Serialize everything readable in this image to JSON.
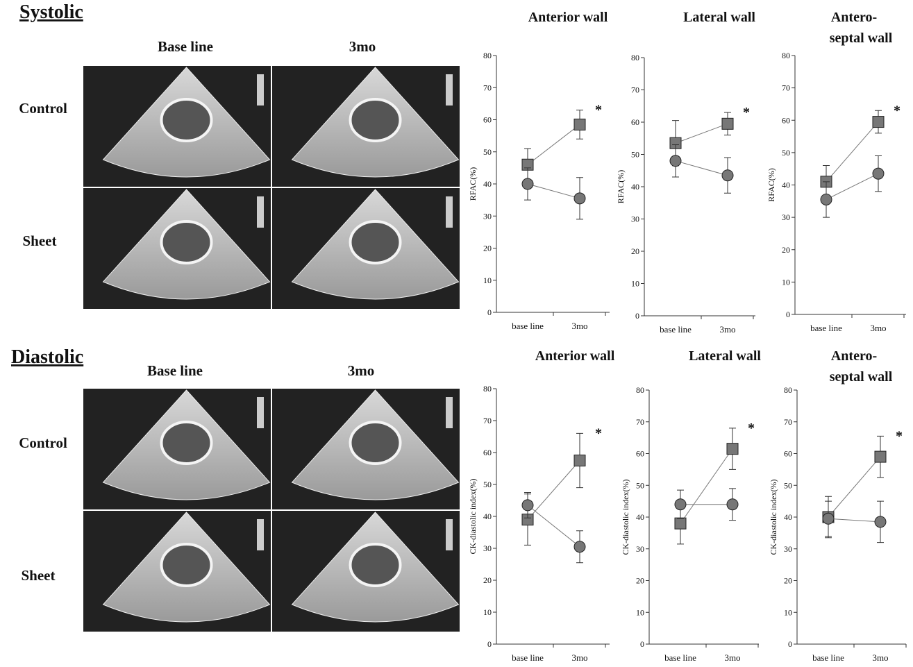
{
  "panels": [
    {
      "title": "Systolic",
      "columns": [
        "Base line",
        "3mo"
      ],
      "rows": [
        "Control",
        "Sheet"
      ]
    },
    {
      "title": "Diastolic",
      "columns": [
        "Base line",
        "3mo"
      ],
      "rows": [
        "Control",
        "Sheet"
      ]
    }
  ],
  "chart_data": [
    {
      "type": "line",
      "title": [
        "Anterior wall"
      ],
      "ylabel": "RFAC(%)",
      "categories": [
        "base line",
        "3mo"
      ],
      "ylim": [
        0,
        80
      ],
      "yticks": [
        0,
        10,
        20,
        30,
        40,
        50,
        60,
        70,
        80
      ],
      "annotation": "*",
      "series": [
        {
          "marker": "square",
          "color": "#777777",
          "values": [
            46,
            58.5
          ],
          "errors": [
            5,
            4.5
          ]
        },
        {
          "marker": "circle",
          "color": "#777777",
          "values": [
            40,
            35.5
          ],
          "errors": [
            5,
            6.5
          ]
        }
      ]
    },
    {
      "type": "line",
      "title": [
        "Lateral wall"
      ],
      "ylabel": "RFAC(%)",
      "categories": [
        "base line",
        "3mo"
      ],
      "ylim": [
        0,
        80
      ],
      "yticks": [
        0,
        10,
        20,
        30,
        40,
        50,
        60,
        70,
        80
      ],
      "annotation": "*",
      "series": [
        {
          "marker": "square",
          "color": "#777777",
          "values": [
            53.5,
            59.5
          ],
          "errors": [
            7,
            3.5
          ]
        },
        {
          "marker": "circle",
          "color": "#777777",
          "values": [
            48,
            43.5
          ],
          "errors": [
            5,
            5.5
          ]
        }
      ]
    },
    {
      "type": "line",
      "title": [
        "Antero-",
        "septal wall"
      ],
      "ylabel": "RFAC(%)",
      "categories": [
        "base line",
        "3mo"
      ],
      "ylim": [
        0,
        80
      ],
      "yticks": [
        0,
        10,
        20,
        30,
        40,
        50,
        60,
        70,
        80
      ],
      "annotation": "*",
      "series": [
        {
          "marker": "square",
          "color": "#777777",
          "values": [
            41,
            59.5
          ],
          "errors": [
            5,
            3.5
          ]
        },
        {
          "marker": "circle",
          "color": "#777777",
          "values": [
            35.5,
            43.5
          ],
          "errors": [
            5.5,
            5.5
          ]
        }
      ]
    },
    {
      "type": "line",
      "title": [
        "Anterior wall"
      ],
      "ylabel": "CK-diastolic index(%)",
      "categories": [
        "base line",
        "3mo"
      ],
      "ylim": [
        0,
        80
      ],
      "yticks": [
        0,
        10,
        20,
        30,
        40,
        50,
        60,
        70,
        80
      ],
      "annotation": "*",
      "series": [
        {
          "marker": "square",
          "color": "#777777",
          "values": [
            39,
            57.5
          ],
          "errors": [
            8,
            8.5
          ]
        },
        {
          "marker": "circle",
          "color": "#777777",
          "values": [
            43.5,
            30.5
          ],
          "errors": [
            4,
            5
          ]
        }
      ]
    },
    {
      "type": "line",
      "title": [
        "Lateral wall"
      ],
      "ylabel": "CK-diastolic index(%)",
      "categories": [
        "base line",
        "3mo"
      ],
      "ylim": [
        0,
        80
      ],
      "yticks": [
        0,
        10,
        20,
        30,
        40,
        50,
        60,
        70,
        80
      ],
      "annotation": "*",
      "series": [
        {
          "marker": "square",
          "color": "#777777",
          "values": [
            38,
            61.5
          ],
          "errors": [
            6.5,
            6.5
          ]
        },
        {
          "marker": "circle",
          "color": "#777777",
          "values": [
            44,
            44
          ],
          "errors": [
            4.5,
            5
          ]
        }
      ]
    },
    {
      "type": "line",
      "title": [
        "Antero-",
        "septal wall"
      ],
      "ylabel": "CK-diastolic index(%)",
      "categories": [
        "base line",
        "3mo"
      ],
      "ylim": [
        0,
        80
      ],
      "yticks": [
        0,
        10,
        20,
        30,
        40,
        50,
        60,
        70,
        80
      ],
      "annotation": "*",
      "series": [
        {
          "marker": "square",
          "color": "#777777",
          "values": [
            40,
            59
          ],
          "errors": [
            6.5,
            6.5
          ]
        },
        {
          "marker": "circle",
          "color": "#777777",
          "values": [
            39.5,
            38.5
          ],
          "errors": [
            5.5,
            6.5
          ]
        }
      ]
    }
  ]
}
